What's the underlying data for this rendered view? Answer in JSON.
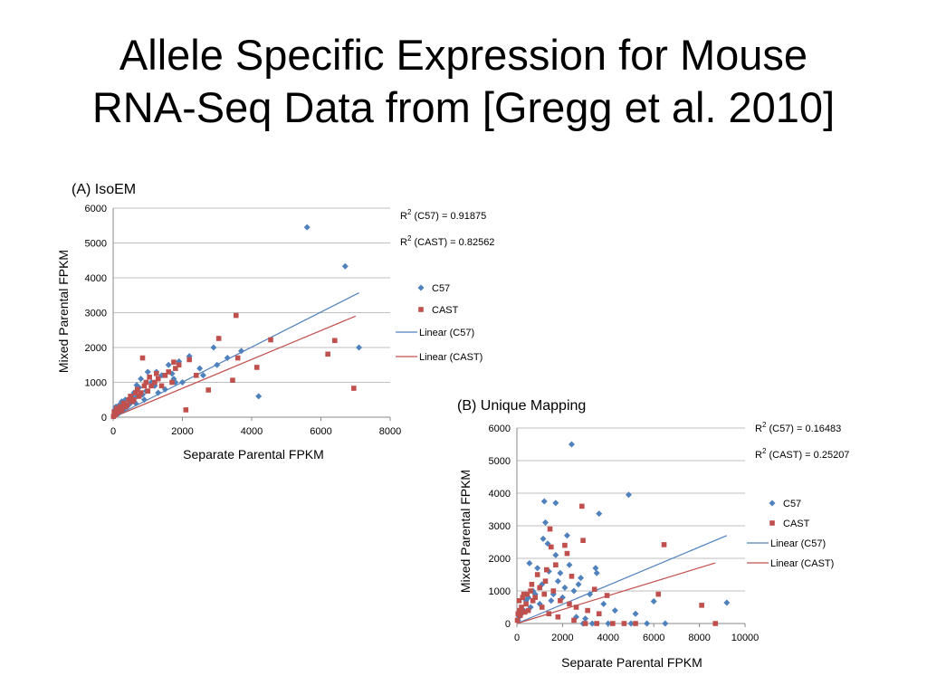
{
  "slide": {
    "title_line1": "Allele Specific Expression for Mouse",
    "title_line2": "RNA-Seq Data from [Gregg et al. 2010]"
  },
  "colors": {
    "c57": "#4F81BD",
    "cast": "#C0504D",
    "grid": "#BFBFBF"
  },
  "chart_data": [
    {
      "type": "scatter",
      "title": "(A) IsoEM",
      "xlabel": "Separate Parental FPKM",
      "ylabel": "Mixed Parental FPKM",
      "xlim": [
        0,
        8000
      ],
      "ylim": [
        0,
        6000
      ],
      "xticks": [
        "0",
        "2000",
        "4000",
        "6000",
        "8000"
      ],
      "yticks": [
        "0",
        "1000",
        "2000",
        "3000",
        "4000",
        "5000",
        "6000"
      ],
      "grid": "horizontal",
      "legend_position": "right",
      "legend": [
        "C57",
        "CAST",
        "Linear (C57)",
        "Linear (CAST)"
      ],
      "annotations": [
        {
          "label": "R",
          "sup": "2",
          "rest": " (C57) = 0.91875"
        },
        {
          "label": "R",
          "sup": "2",
          "rest": " (CAST) = 0.82562"
        }
      ],
      "series": [
        {
          "name": "C57",
          "marker": "diamond",
          "points": [
            [
              5600,
              5450
            ],
            [
              6700,
              4330
            ],
            [
              7100,
              2000
            ],
            [
              4200,
              600
            ],
            [
              3700,
              1900
            ],
            [
              3300,
              1700
            ],
            [
              2900,
              2000
            ],
            [
              2200,
              1750
            ],
            [
              1800,
              1000
            ],
            [
              1500,
              800
            ],
            [
              1200,
              900
            ],
            [
              1000,
              1300
            ],
            [
              800,
              1100
            ],
            [
              700,
              600
            ],
            [
              600,
              700
            ],
            [
              500,
              400
            ],
            [
              400,
              300
            ],
            [
              300,
              200
            ],
            [
              250,
              450
            ],
            [
              200,
              150
            ],
            [
              150,
              100
            ],
            [
              100,
              80
            ],
            [
              80,
              300
            ],
            [
              60,
              50
            ],
            [
              40,
              200
            ],
            [
              20,
              30
            ],
            [
              1600,
              1500
            ],
            [
              1400,
              1200
            ],
            [
              1100,
              1000
            ],
            [
              900,
              500
            ],
            [
              750,
              850
            ],
            [
              650,
              400
            ],
            [
              550,
              600
            ],
            [
              450,
              350
            ],
            [
              350,
              500
            ],
            [
              280,
              250
            ],
            [
              180,
              350
            ],
            [
              120,
              220
            ],
            [
              2500,
              1400
            ],
            [
              2000,
              1000
            ],
            [
              1900,
              1600
            ],
            [
              1700,
              1250
            ],
            [
              1300,
              700
            ],
            [
              950,
              750
            ],
            [
              850,
              650
            ],
            [
              2600,
              1200
            ],
            [
              3000,
              1500
            ],
            [
              1750,
              1100
            ],
            [
              1250,
              1300
            ],
            [
              680,
              920
            ]
          ]
        },
        {
          "name": "CAST",
          "marker": "square",
          "points": [
            [
              3550,
              2920
            ],
            [
              4550,
              2220
            ],
            [
              3050,
              2260
            ],
            [
              1750,
              1580
            ],
            [
              850,
              1700
            ],
            [
              6200,
              1810
            ],
            [
              6400,
              2200
            ],
            [
              4150,
              1430
            ],
            [
              6950,
              830
            ],
            [
              3450,
              1060
            ],
            [
              2750,
              780
            ],
            [
              2100,
              210
            ],
            [
              1500,
              1200
            ],
            [
              1300,
              1100
            ],
            [
              1100,
              900
            ],
            [
              950,
              1000
            ],
            [
              800,
              700
            ],
            [
              700,
              800
            ],
            [
              600,
              500
            ],
            [
              500,
              600
            ],
            [
              400,
              350
            ],
            [
              300,
              400
            ],
            [
              250,
              200
            ],
            [
              200,
              300
            ],
            [
              150,
              150
            ],
            [
              100,
              250
            ],
            [
              80,
              100
            ],
            [
              50,
              60
            ],
            [
              30,
              150
            ],
            [
              10,
              20
            ],
            [
              1600,
              1300
            ],
            [
              1400,
              900
            ],
            [
              1200,
              1000
            ],
            [
              1000,
              750
            ],
            [
              900,
              900
            ],
            [
              750,
              600
            ],
            [
              650,
              700
            ],
            [
              550,
              450
            ],
            [
              450,
              500
            ],
            [
              350,
              300
            ],
            [
              180,
              220
            ],
            [
              120,
              180
            ],
            [
              1800,
              1400
            ],
            [
              2200,
              1650
            ],
            [
              1900,
              1500
            ],
            [
              1700,
              1000
            ],
            [
              3600,
              1700
            ],
            [
              2400,
              1200
            ],
            [
              1250,
              1250
            ],
            [
              1050,
              1150
            ]
          ]
        }
      ],
      "trendlines": [
        {
          "name": "Linear (C57)",
          "from": [
            0,
            0
          ],
          "to": [
            7100,
            3570
          ]
        },
        {
          "name": "Linear (CAST)",
          "from": [
            0,
            0
          ],
          "to": [
            7000,
            2900
          ]
        }
      ]
    },
    {
      "type": "scatter",
      "title": "(B) Unique Mapping",
      "xlabel": "Separate Parental FPKM",
      "ylabel": "Mixed Parental FPKM",
      "xlim": [
        0,
        10000
      ],
      "ylim": [
        0,
        6000
      ],
      "xticks": [
        "0",
        "2000",
        "4000",
        "6000",
        "8000",
        "10000"
      ],
      "yticks": [
        "0",
        "1000",
        "2000",
        "3000",
        "4000",
        "5000",
        "6000"
      ],
      "grid": "horizontal",
      "legend_position": "right",
      "legend": [
        "C57",
        "CAST",
        "Linear (C57)",
        "Linear (CAST)"
      ],
      "annotations": [
        {
          "label": "R",
          "sup": "2",
          "rest": " (C57) = 0.16483"
        },
        {
          "label": "R",
          "sup": "2",
          "rest": " (CAST) = 0.25207"
        }
      ],
      "series": [
        {
          "name": "C57",
          "marker": "diamond",
          "points": [
            [
              2400,
              5500
            ],
            [
              4900,
              3950
            ],
            [
              1200,
              3750
            ],
            [
              1700,
              3700
            ],
            [
              3600,
              3370
            ],
            [
              1250,
              3100
            ],
            [
              2200,
              2700
            ],
            [
              1150,
              2600
            ],
            [
              1350,
              2450
            ],
            [
              1700,
              2100
            ],
            [
              2300,
              1800
            ],
            [
              3450,
              1700
            ],
            [
              3500,
              1550
            ],
            [
              550,
              1850
            ],
            [
              900,
              1700
            ],
            [
              1900,
              1550
            ],
            [
              2800,
              1400
            ],
            [
              6000,
              680
            ],
            [
              9200,
              640
            ],
            [
              2700,
              1200
            ],
            [
              2500,
              1000
            ],
            [
              2000,
              800
            ],
            [
              1500,
              700
            ],
            [
              1000,
              600
            ],
            [
              800,
              900
            ],
            [
              600,
              500
            ],
            [
              400,
              700
            ],
            [
              300,
              400
            ],
            [
              200,
              300
            ],
            [
              100,
              200
            ],
            [
              50,
              100
            ],
            [
              1800,
              1300
            ],
            [
              2100,
              1100
            ],
            [
              1600,
              900
            ],
            [
              1400,
              1600
            ],
            [
              1100,
              1200
            ],
            [
              700,
              1000
            ],
            [
              500,
              800
            ],
            [
              3200,
              900
            ],
            [
              3800,
              600
            ],
            [
              4300,
              400
            ],
            [
              5200,
              300
            ],
            [
              2600,
              200
            ],
            [
              3000,
              150
            ],
            [
              4000,
              0
            ],
            [
              5000,
              0
            ],
            [
              5700,
              0
            ],
            [
              6500,
              0
            ],
            [
              3300,
              0
            ],
            [
              2900,
              0
            ]
          ]
        },
        {
          "name": "CAST",
          "marker": "square",
          "points": [
            [
              2850,
              3600
            ],
            [
              1450,
              2900
            ],
            [
              2100,
              2400
            ],
            [
              2900,
              2550
            ],
            [
              6450,
              2420
            ],
            [
              1500,
              2350
            ],
            [
              2200,
              2150
            ],
            [
              1700,
              1800
            ],
            [
              1300,
              1650
            ],
            [
              2400,
              1450
            ],
            [
              3400,
              1050
            ],
            [
              3950,
              860
            ],
            [
              6200,
              900
            ],
            [
              8100,
              560
            ],
            [
              8700,
              0
            ],
            [
              1000,
              1100
            ],
            [
              800,
              800
            ],
            [
              600,
              1000
            ],
            [
              400,
              600
            ],
            [
              300,
              900
            ],
            [
              200,
              500
            ],
            [
              100,
              700
            ],
            [
              50,
              300
            ],
            [
              20,
              100
            ],
            [
              1200,
              900
            ],
            [
              1600,
              1000
            ],
            [
              1900,
              700
            ],
            [
              2300,
              600
            ],
            [
              2600,
              500
            ],
            [
              3100,
              400
            ],
            [
              3600,
              300
            ],
            [
              700,
              700
            ],
            [
              500,
              400
            ],
            [
              350,
              350
            ],
            [
              150,
              250
            ],
            [
              1100,
              500
            ],
            [
              1400,
              300
            ],
            [
              1800,
              200
            ],
            [
              2500,
              100
            ],
            [
              3000,
              0
            ],
            [
              3500,
              0
            ],
            [
              4200,
              0
            ],
            [
              4700,
              0
            ],
            [
              5200,
              0
            ],
            [
              900,
              1500
            ],
            [
              1250,
              1300
            ],
            [
              650,
              1200
            ],
            [
              450,
              900
            ],
            [
              250,
              800
            ],
            [
              120,
              400
            ]
          ]
        }
      ],
      "trendlines": [
        {
          "name": "Linear (C57)",
          "from": [
            0,
            0
          ],
          "to": [
            9200,
            2700
          ]
        },
        {
          "name": "Linear (CAST)",
          "from": [
            0,
            0
          ],
          "to": [
            8700,
            1860
          ]
        }
      ]
    }
  ]
}
